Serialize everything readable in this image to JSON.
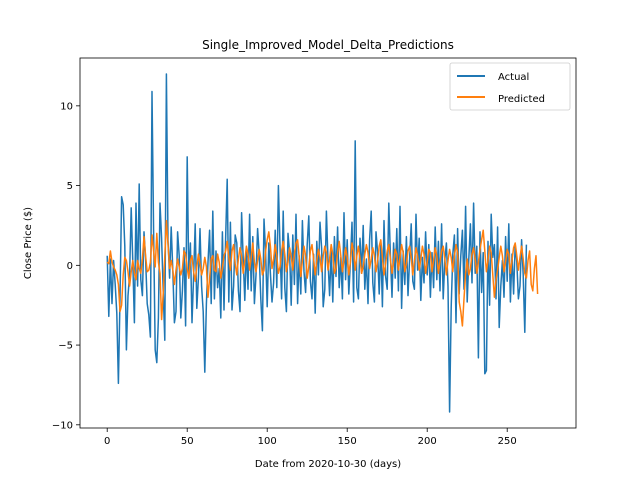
{
  "chart_data": {
    "type": "line",
    "title": "Single_Improved_Model_Delta_Predictions",
    "xlabel": "Date from 2020-10-30 (days)",
    "ylabel": "Close Price ($)",
    "xlim": [
      -17,
      293
    ],
    "ylim": [
      -10.2,
      13
    ],
    "xticks": [
      0,
      50,
      100,
      150,
      200,
      250
    ],
    "yticks": [
      -10,
      -5,
      0,
      5,
      10
    ],
    "grid": false,
    "legend_position": "top-right",
    "series": [
      {
        "name": "Actual",
        "color": "#1f77b4",
        "values": [
          0.6,
          -3.2,
          0.4,
          -2.4,
          0.3,
          -1.2,
          -3.0,
          -7.4,
          -2.1,
          4.3,
          3.8,
          1.2,
          -5.3,
          -1.9,
          -0.6,
          3.6,
          0.2,
          -3.6,
          3.9,
          -1.3,
          5.1,
          -0.9,
          -1.9,
          2.1,
          0.4,
          -2.4,
          -3.1,
          -4.5,
          10.9,
          2.1,
          -5.3,
          -6.1,
          -3.3,
          3.9,
          1.7,
          -1.6,
          -4.7,
          12.0,
          1.6,
          -0.8,
          2.4,
          -0.3,
          -3.6,
          -2.9,
          2.1,
          0.6,
          -3.3,
          -1.6,
          1.1,
          -3.8,
          6.8,
          -0.8,
          1.4,
          -3.6,
          -0.7,
          2.6,
          -2.7,
          -0.8,
          2.3,
          -1.3,
          -2.9,
          -6.7,
          -2.4,
          0.2,
          2.2,
          -2.4,
          3.4,
          -2.1,
          0.9,
          -1.4,
          -0.2,
          -3.3,
          2.1,
          -2.8,
          1.6,
          5.4,
          -2.3,
          2.7,
          -2.8,
          -1.3,
          1.9,
          1.4,
          -1.6,
          -2.9,
          3.3,
          0.4,
          -2.2,
          1.1,
          -1.5,
          3.2,
          -1.6,
          1.8,
          -2.4,
          -0.6,
          2.3,
          0.7,
          -2.1,
          -4.1,
          2.9,
          0.8,
          -2.6,
          1.4,
          -0.5,
          -2.3,
          -1.1,
          2.2,
          -1.4,
          5.0,
          1.2,
          -2.1,
          3.4,
          -1.4,
          -2.9,
          2.0,
          0.8,
          -2.5,
          1.9,
          -1.2,
          3.2,
          -2.4,
          0.6,
          -1.8,
          2.8,
          -0.4,
          -1.7,
          1.3,
          3.1,
          -1.0,
          -2.1,
          0.7,
          -3.0,
          1.5,
          -0.6,
          2.7,
          1.1,
          -2.6,
          -1.5,
          3.4,
          0.3,
          -1.9,
          0.9,
          -2.3,
          1.8,
          -0.7,
          2.4,
          -1.4,
          0.5,
          -2.1,
          3.3,
          -0.9,
          1.6,
          -1.8,
          0.2,
          2.7,
          -2.3,
          7.8,
          -1.4,
          -2.1,
          1.7,
          -0.5,
          2.5,
          -1.5,
          0.4,
          -2.4,
          1.6,
          3.4,
          -1.1,
          -2.3,
          2.1,
          0.8,
          -1.8,
          1.3,
          -2.6,
          2.8,
          -0.7,
          -1.5,
          3.9,
          0.6,
          -2.0,
          1.4,
          -0.8,
          2.3,
          -1.6,
          3.7,
          -2.7,
          0.9,
          -1.2,
          1.8,
          -1.9,
          0.4,
          2.6,
          -1.0,
          -1.5,
          3.2,
          -0.3,
          1.7,
          -2.2,
          0.5,
          -1.1,
          2.1,
          -0.6,
          1.3,
          -2.0,
          0.8,
          -1.4,
          2.4,
          -0.9,
          1.5,
          -1.6,
          2.6,
          -2.1,
          0.3,
          1.4,
          -1.3,
          -9.2,
          -2.6,
          0.7,
          1.9,
          -3.6,
          2.3,
          -1.8,
          0.6,
          2.2,
          -1.5,
          3.7,
          -2.3,
          0.4,
          2.6,
          -1.1,
          3.9,
          -0.5,
          1.2,
          -5.8,
          2.1,
          -1.7,
          0.8,
          -6.8,
          -6.6,
          1.5,
          -2.5,
          3.2,
          0.5,
          1.3,
          -2.1,
          2.4,
          -3.9,
          -1.3,
          0.3,
          -2.0,
          1.8,
          -1.0,
          2.6,
          -2.3,
          0.7,
          -1.8,
          1.3,
          0.2,
          -2.1,
          -1.3,
          1.6,
          -0.6,
          -4.2,
          1.3
        ]
      },
      {
        "name": "Predicted",
        "color": "#ff7f0e",
        "values": [
          0.2,
          0.1,
          0.9,
          0.2,
          -0.1,
          -0.3,
          -0.6,
          -1.2,
          -2.9,
          -2.5,
          -0.6,
          0.5,
          0.3,
          -0.4,
          -1.3,
          -0.4,
          0.3,
          -0.5,
          -0.9,
          0.3,
          -0.2,
          -0.5,
          0.4,
          1.8,
          0.6,
          -0.4,
          -0.3,
          0.2,
          1.9,
          0.9,
          -0.1,
          2.0,
          0.2,
          -0.5,
          -3.4,
          -1.8,
          0.6,
          2.8,
          1.3,
          -0.2,
          0.3,
          -0.3,
          -1.2,
          -0.3,
          0.4,
          -0.1,
          -0.6,
          -0.2,
          0.9,
          0.7,
          -0.2,
          -0.8,
          0.3,
          0.6,
          -0.4,
          -1.0,
          -0.1,
          0.7,
          0.1,
          -0.6,
          -0.2,
          0.5,
          -0.1,
          -2.0,
          -0.8,
          0.4,
          0.6,
          -0.3,
          -0.4,
          0.7,
          0.2,
          -0.8,
          -0.2,
          0.6,
          0.9,
          1.5,
          0.5,
          -0.3,
          0.9,
          1.3,
          0.1,
          -0.6,
          0.4,
          1.1,
          0.6,
          -0.5,
          0.3,
          1.2,
          0.7,
          -0.3,
          0.5,
          1.4,
          0.2,
          -0.4,
          0.3,
          1.0,
          0.4,
          -0.6,
          -0.3,
          0.9,
          1.6,
          2.1,
          1.2,
          -0.2,
          0.4,
          1.3,
          0.6,
          -0.5,
          -0.1,
          0.9,
          1.5,
          0.7,
          -0.4,
          0.2,
          1.1,
          0.6,
          -0.3,
          0.7,
          1.4,
          1.6,
          0.5,
          -0.7,
          0.3,
          1.2,
          0.6,
          -0.8,
          -0.1,
          0.9,
          1.3,
          0.4,
          -0.6,
          0.3,
          1.0,
          0.5,
          -0.4,
          0.6,
          1.2,
          0.8,
          -0.3,
          0.4,
          1.3,
          0.7,
          -0.5,
          -0.2,
          0.8,
          1.5,
          0.6,
          -0.4,
          0.3,
          1.1,
          0.5,
          -0.6,
          0.2,
          1.4,
          0.9,
          -0.3,
          0.6,
          1.2,
          0.4,
          -0.5,
          -0.1,
          0.7,
          1.3,
          0.8,
          -0.2,
          0.4,
          1.1,
          0.6,
          -0.4,
          0.3,
          1.2,
          1.6,
          0.5,
          -0.6,
          0.1,
          0.9,
          1.3,
          0.4,
          -0.5,
          0.2,
          1.0,
          0.7,
          -0.3,
          0.5,
          1.3,
          0.8,
          -0.4,
          0.1,
          0.9,
          1.2,
          0.5,
          -0.6,
          0.3,
          1.1,
          0.6,
          -0.3,
          0.4,
          1.2,
          0.7,
          -0.5,
          0.2,
          1.0,
          0.8,
          -0.4,
          0.3,
          1.1,
          0.6,
          -0.5,
          0.2,
          0.9,
          1.2,
          0.4,
          -0.6,
          0.3,
          1.0,
          0.5,
          -0.4,
          0.6,
          1.3,
          0.8,
          -2.3,
          -2.9,
          -3.8,
          -2.1,
          -0.5,
          0.4,
          -0.6,
          -0.2,
          0.7,
          1.1,
          0.4,
          -0.5,
          0.2,
          1.0,
          1.6,
          2.2,
          0.9,
          -0.4,
          0.3,
          1.2,
          0.8,
          -0.6,
          -2.0,
          -0.9,
          -0.3,
          0.5,
          1.2,
          0.6,
          -0.4,
          0.2,
          1.0,
          0.7,
          -0.5,
          0.3,
          1.1,
          1.4,
          0.6,
          -0.3,
          0.5,
          1.2,
          0.4,
          -0.5,
          -0.8,
          0.3,
          0.9,
          -1.2,
          -1.6,
          -0.2,
          0.6,
          -1.8
        ]
      }
    ]
  }
}
